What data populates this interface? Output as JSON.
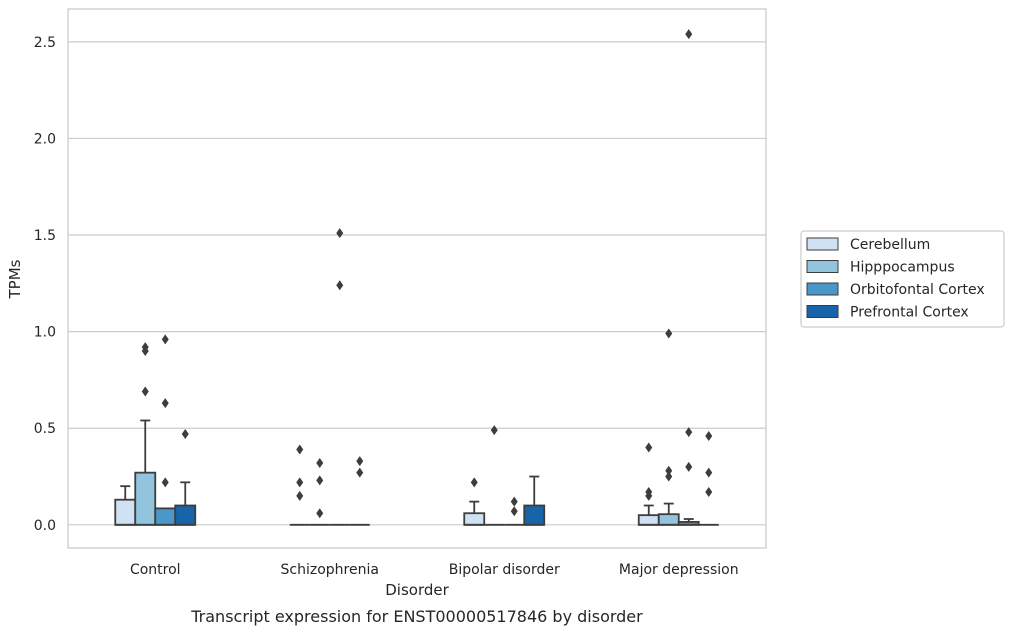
{
  "chart_data": {
    "type": "boxplot",
    "caption": "Transcript expression for ENST00000517846 by disorder",
    "xlabel": "Disorder",
    "ylabel": "TPMs",
    "ylim": [
      -0.12,
      2.67
    ],
    "yticks": [
      "0.0",
      "0.5",
      "1.0",
      "1.5",
      "2.0",
      "2.5"
    ],
    "ytick_values": [
      0.0,
      0.5,
      1.0,
      1.5,
      2.0,
      2.5
    ],
    "grid": true,
    "legend_position": "right",
    "categories": [
      "Control",
      "Schizophrenia",
      "Bipolar disorder",
      "Major depression"
    ],
    "series": [
      {
        "name": "Cerebellum",
        "color": "#cfe1f2",
        "boxes": [
          {
            "q1": 0.0,
            "median": 0.0,
            "q3": 0.13,
            "whisker_low": 0.0,
            "whisker_high": 0.2,
            "outliers": []
          },
          {
            "q1": 0.0,
            "median": 0.0,
            "q3": 0.0,
            "whisker_low": 0.0,
            "whisker_high": 0.0,
            "outliers": [
              0.15,
              0.22,
              0.39
            ]
          },
          {
            "q1": 0.0,
            "median": 0.0,
            "q3": 0.06,
            "whisker_low": 0.0,
            "whisker_high": 0.12,
            "outliers": [
              0.22
            ]
          },
          {
            "q1": 0.0,
            "median": 0.0,
            "q3": 0.05,
            "whisker_low": 0.0,
            "whisker_high": 0.1,
            "outliers": [
              0.15,
              0.17,
              0.4
            ]
          }
        ]
      },
      {
        "name": "Hipppocampus",
        "color": "#93c4de",
        "boxes": [
          {
            "q1": 0.0,
            "median": 0.0,
            "q3": 0.27,
            "whisker_low": 0.0,
            "whisker_high": 0.54,
            "outliers": [
              0.69,
              0.9,
              0.92
            ]
          },
          {
            "q1": 0.0,
            "median": 0.0,
            "q3": 0.0,
            "whisker_low": 0.0,
            "whisker_high": 0.0,
            "outliers": [
              0.06,
              0.23,
              0.32
            ]
          },
          {
            "q1": 0.0,
            "median": 0.0,
            "q3": 0.0,
            "whisker_low": 0.0,
            "whisker_high": 0.0,
            "outliers": [
              0.49
            ]
          },
          {
            "q1": 0.0,
            "median": 0.0,
            "q3": 0.055,
            "whisker_low": 0.0,
            "whisker_high": 0.11,
            "outliers": [
              0.25,
              0.28,
              0.99
            ]
          }
        ]
      },
      {
        "name": "Orbitofontal Cortex",
        "color": "#4a98c9",
        "boxes": [
          {
            "q1": 0.0,
            "median": 0.0,
            "q3": 0.085,
            "whisker_low": 0.0,
            "whisker_high": 0.085,
            "outliers": [
              0.22,
              0.63,
              0.96
            ]
          },
          {
            "q1": 0.0,
            "median": 0.0,
            "q3": 0.0,
            "whisker_low": 0.0,
            "whisker_high": 0.0,
            "outliers": [
              1.24,
              1.51
            ]
          },
          {
            "q1": 0.0,
            "median": 0.0,
            "q3": 0.0,
            "whisker_low": 0.0,
            "whisker_high": 0.0,
            "outliers": [
              0.07,
              0.12
            ]
          },
          {
            "q1": 0.0,
            "median": 0.0,
            "q3": 0.015,
            "whisker_low": 0.0,
            "whisker_high": 0.03,
            "outliers": [
              0.3,
              0.48,
              2.54
            ]
          }
        ]
      },
      {
        "name": "Prefrontal Cortex",
        "color": "#1764ab",
        "boxes": [
          {
            "q1": 0.0,
            "median": 0.0,
            "q3": 0.1,
            "whisker_low": 0.0,
            "whisker_high": 0.22,
            "outliers": [
              0.47
            ]
          },
          {
            "q1": 0.0,
            "median": 0.0,
            "q3": 0.0,
            "whisker_low": 0.0,
            "whisker_high": 0.0,
            "outliers": [
              0.27,
              0.33
            ]
          },
          {
            "q1": 0.0,
            "median": 0.0,
            "q3": 0.1,
            "whisker_low": 0.0,
            "whisker_high": 0.25,
            "outliers": []
          },
          {
            "q1": 0.0,
            "median": 0.0,
            "q3": 0.0,
            "whisker_low": 0.0,
            "whisker_high": 0.0,
            "outliers": [
              0.17,
              0.27,
              0.46
            ]
          }
        ]
      }
    ]
  }
}
